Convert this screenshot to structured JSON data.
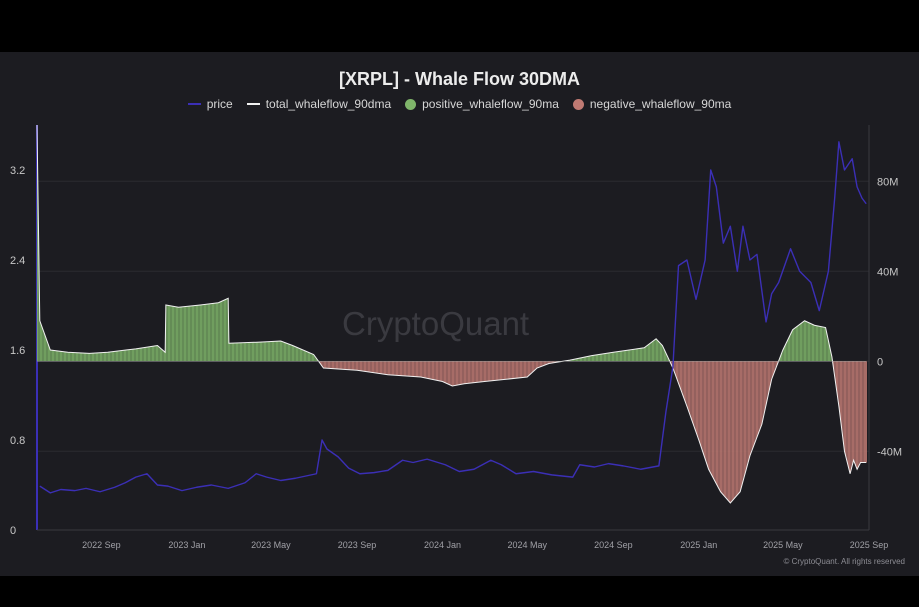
{
  "chart_data": {
    "type": "line",
    "title": "[XRPL] - Whale Flow 30DMA",
    "legend": [
      {
        "label": "price",
        "color": "#3b2fb6",
        "shape": "line"
      },
      {
        "label": "total_whaleflow_90dma",
        "color": "#f1f1f1",
        "shape": "line"
      },
      {
        "label": "positive_whaleflow_90ma",
        "color": "#7fb56a",
        "shape": "dot"
      },
      {
        "label": "negative_whaleflow_90ma",
        "color": "#c07a73",
        "shape": "dot"
      }
    ],
    "x_ticks": [
      "2022 Sep",
      "2023 Jan",
      "2023 May",
      "2023 Sep",
      "2024 Jan",
      "2024 May",
      "2024 Sep",
      "2025 Jan",
      "2025 May",
      "2025 Sep"
    ],
    "x_range": [
      "2022-06",
      "2025-09"
    ],
    "left_axis": {
      "label": "",
      "ticks": [
        "0",
        "0.8",
        "1.6",
        "2.4",
        "3.2"
      ],
      "ylim": [
        0,
        3.6
      ]
    },
    "right_axis": {
      "label": "",
      "ticks": [
        "-40M",
        "0",
        "40M",
        "80M"
      ],
      "ylim": [
        -75,
        105
      ],
      "unit": "M"
    },
    "series": [
      {
        "name": "price",
        "axis": "left",
        "points": [
          [
            "2022-06-05",
            0.39
          ],
          [
            "2022-06-20",
            0.33
          ],
          [
            "2022-07-05",
            0.36
          ],
          [
            "2022-07-25",
            0.35
          ],
          [
            "2022-08-10",
            0.37
          ],
          [
            "2022-08-30",
            0.34
          ],
          [
            "2022-09-20",
            0.38
          ],
          [
            "2022-10-05",
            0.42
          ],
          [
            "2022-10-20",
            0.47
          ],
          [
            "2022-11-05",
            0.5
          ],
          [
            "2022-11-20",
            0.4
          ],
          [
            "2022-12-05",
            0.39
          ],
          [
            "2022-12-25",
            0.35
          ],
          [
            "2023-01-15",
            0.38
          ],
          [
            "2023-02-05",
            0.4
          ],
          [
            "2023-03-01",
            0.37
          ],
          [
            "2023-03-25",
            0.42
          ],
          [
            "2023-04-10",
            0.5
          ],
          [
            "2023-04-25",
            0.47
          ],
          [
            "2023-05-15",
            0.44
          ],
          [
            "2023-06-05",
            0.46
          ],
          [
            "2023-06-20",
            0.48
          ],
          [
            "2023-07-05",
            0.5
          ],
          [
            "2023-07-13",
            0.8
          ],
          [
            "2023-07-20",
            0.72
          ],
          [
            "2023-08-05",
            0.65
          ],
          [
            "2023-08-20",
            0.55
          ],
          [
            "2023-09-05",
            0.5
          ],
          [
            "2023-09-25",
            0.51
          ],
          [
            "2023-10-15",
            0.53
          ],
          [
            "2023-11-05",
            0.62
          ],
          [
            "2023-11-20",
            0.6
          ],
          [
            "2023-12-10",
            0.63
          ],
          [
            "2024-01-05",
            0.58
          ],
          [
            "2024-01-25",
            0.52
          ],
          [
            "2024-02-15",
            0.54
          ],
          [
            "2024-03-10",
            0.62
          ],
          [
            "2024-03-25",
            0.58
          ],
          [
            "2024-04-15",
            0.5
          ],
          [
            "2024-05-10",
            0.52
          ],
          [
            "2024-06-05",
            0.49
          ],
          [
            "2024-07-05",
            0.47
          ],
          [
            "2024-07-15",
            0.58
          ],
          [
            "2024-08-05",
            0.56
          ],
          [
            "2024-08-25",
            0.59
          ],
          [
            "2024-09-15",
            0.57
          ],
          [
            "2024-10-10",
            0.54
          ],
          [
            "2024-11-05",
            0.57
          ],
          [
            "2024-11-15",
            1.05
          ],
          [
            "2024-11-25",
            1.45
          ],
          [
            "2024-12-03",
            2.35
          ],
          [
            "2024-12-15",
            2.4
          ],
          [
            "2024-12-28",
            2.05
          ],
          [
            "2025-01-10",
            2.4
          ],
          [
            "2025-01-18",
            3.2
          ],
          [
            "2025-01-26",
            3.05
          ],
          [
            "2025-02-05",
            2.55
          ],
          [
            "2025-02-15",
            2.7
          ],
          [
            "2025-02-25",
            2.3
          ],
          [
            "2025-03-05",
            2.7
          ],
          [
            "2025-03-15",
            2.4
          ],
          [
            "2025-03-25",
            2.45
          ],
          [
            "2025-04-07",
            1.85
          ],
          [
            "2025-04-15",
            2.1
          ],
          [
            "2025-04-25",
            2.2
          ],
          [
            "2025-05-12",
            2.5
          ],
          [
            "2025-05-25",
            2.3
          ],
          [
            "2025-06-10",
            2.2
          ],
          [
            "2025-06-22",
            1.95
          ],
          [
            "2025-07-05",
            2.3
          ],
          [
            "2025-07-14",
            2.95
          ],
          [
            "2025-07-20",
            3.45
          ],
          [
            "2025-07-28",
            3.2
          ],
          [
            "2025-08-08",
            3.3
          ],
          [
            "2025-08-15",
            3.05
          ],
          [
            "2025-08-22",
            2.95
          ],
          [
            "2025-08-28",
            2.9
          ]
        ]
      },
      {
        "name": "total_whaleflow_90dma",
        "axis": "right",
        "points": [
          [
            "2022-06-01",
            105
          ],
          [
            "2022-06-05",
            18
          ],
          [
            "2022-06-20",
            5
          ],
          [
            "2022-07-15",
            4
          ],
          [
            "2022-08-15",
            3.5
          ],
          [
            "2022-09-10",
            4
          ],
          [
            "2022-10-20",
            5.5
          ],
          [
            "2022-11-20",
            7
          ],
          [
            "2022-12-01",
            4
          ],
          [
            "2022-12-02",
            25
          ],
          [
            "2022-12-20",
            24
          ],
          [
            "2023-01-20",
            25
          ],
          [
            "2023-02-15",
            26
          ],
          [
            "2023-03-01",
            28
          ],
          [
            "2023-03-02",
            8
          ],
          [
            "2023-04-15",
            8.5
          ],
          [
            "2023-05-15",
            9
          ],
          [
            "2023-06-01",
            7
          ],
          [
            "2023-07-01",
            3
          ],
          [
            "2023-07-15",
            -3
          ],
          [
            "2023-09-01",
            -4
          ],
          [
            "2023-10-15",
            -6
          ],
          [
            "2023-12-01",
            -7
          ],
          [
            "2024-01-01",
            -9
          ],
          [
            "2024-01-15",
            -11
          ],
          [
            "2024-02-01",
            -10
          ],
          [
            "2024-03-01",
            -9
          ],
          [
            "2024-04-01",
            -8
          ],
          [
            "2024-05-01",
            -7
          ],
          [
            "2024-05-15",
            -3
          ],
          [
            "2024-06-01",
            -1
          ],
          [
            "2024-07-01",
            0.5
          ],
          [
            "2024-08-01",
            2.5
          ],
          [
            "2024-09-01",
            4
          ],
          [
            "2024-10-15",
            6
          ],
          [
            "2024-11-01",
            10
          ],
          [
            "2024-11-10",
            7
          ],
          [
            "2024-11-25",
            -3
          ],
          [
            "2024-12-15",
            -20
          ],
          [
            "2025-01-01",
            -35
          ],
          [
            "2025-01-15",
            -48
          ],
          [
            "2025-02-01",
            -58
          ],
          [
            "2025-02-15",
            -63
          ],
          [
            "2025-03-01",
            -58
          ],
          [
            "2025-03-15",
            -42
          ],
          [
            "2025-04-01",
            -28
          ],
          [
            "2025-04-15",
            -8
          ],
          [
            "2025-05-01",
            5
          ],
          [
            "2025-05-15",
            14
          ],
          [
            "2025-06-01",
            18
          ],
          [
            "2025-06-15",
            16
          ],
          [
            "2025-07-01",
            15
          ],
          [
            "2025-07-10",
            2
          ],
          [
            "2025-07-20",
            -20
          ],
          [
            "2025-07-28",
            -40
          ],
          [
            "2025-08-05",
            -50
          ],
          [
            "2025-08-10",
            -44
          ],
          [
            "2025-08-15",
            -48
          ],
          [
            "2025-08-20",
            -45
          ],
          [
            "2025-08-28",
            -45
          ]
        ]
      }
    ],
    "watermark": "CryptoQuant",
    "credit": "© CryptoQuant. All rights reserved"
  }
}
